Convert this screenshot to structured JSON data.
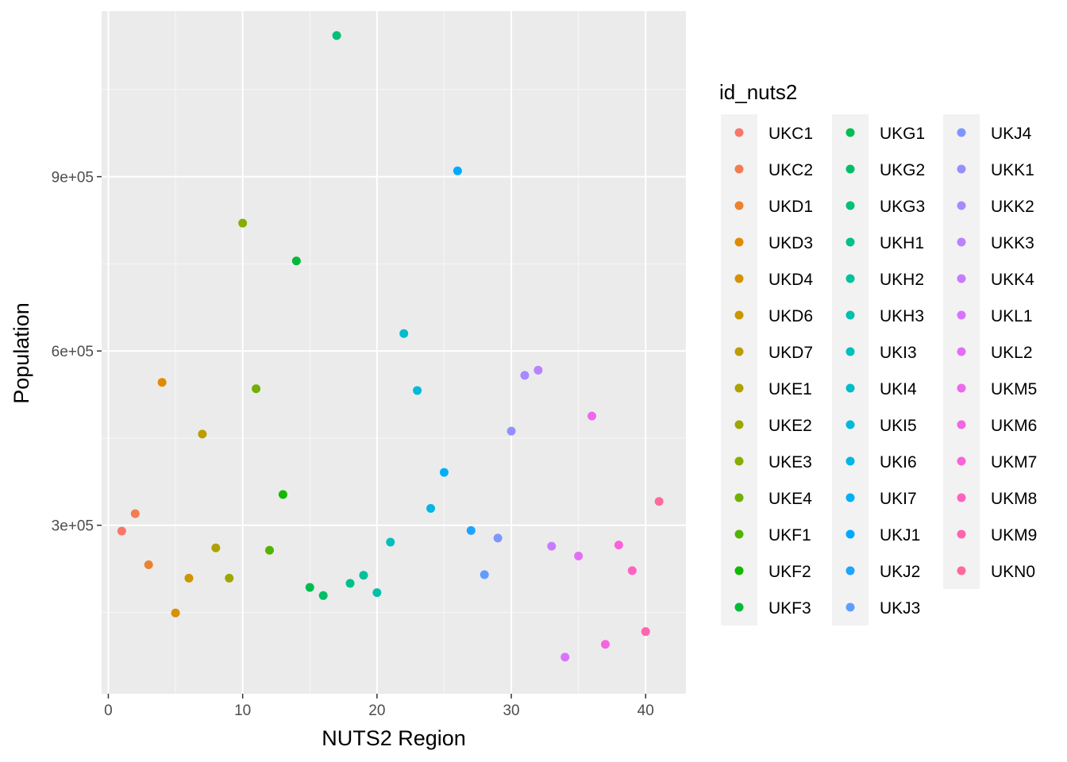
{
  "chart_data": {
    "type": "scatter",
    "xlabel": "NUTS2 Region",
    "ylabel": "Population",
    "xlim": [
      -0.5,
      43.0
    ],
    "ylim": [
      10000,
      1185000
    ],
    "x_ticks": [
      0,
      10,
      20,
      30,
      40
    ],
    "x_tick_labels": [
      "0",
      "10",
      "20",
      "30",
      "40"
    ],
    "y_ticks": [
      300000,
      600000,
      900000
    ],
    "y_tick_labels": [
      "3e+05",
      "6e+05",
      "9e+05"
    ],
    "y_minor_ticks": [
      150000,
      450000,
      750000,
      1050000
    ],
    "x_minor_ticks": [
      5,
      15,
      25,
      35
    ],
    "grid": true,
    "legend": {
      "title": "id_nuts2",
      "position": "right",
      "columns": 3
    },
    "points": [
      {
        "x": 1,
        "y": 290000,
        "label": "UKC1",
        "color": "#F8766D"
      },
      {
        "x": 2,
        "y": 320000,
        "label": "UKC2",
        "color": "#F27D52"
      },
      {
        "x": 3,
        "y": 232000,
        "label": "UKD1",
        "color": "#EA8331"
      },
      {
        "x": 4,
        "y": 546000,
        "label": "UKD3",
        "color": "#E18A00"
      },
      {
        "x": 5,
        "y": 149000,
        "label": "UKD4",
        "color": "#D69100"
      },
      {
        "x": 6,
        "y": 209000,
        "label": "UKD6",
        "color": "#CA9700"
      },
      {
        "x": 7,
        "y": 457000,
        "label": "UKD7",
        "color": "#BC9D00"
      },
      {
        "x": 8,
        "y": 261000,
        "label": "UKE1",
        "color": "#ADA200"
      },
      {
        "x": 9,
        "y": 209000,
        "label": "UKE2",
        "color": "#9CA700"
      },
      {
        "x": 10,
        "y": 820000,
        "label": "UKE3",
        "color": "#88AC00"
      },
      {
        "x": 11,
        "y": 535000,
        "label": "UKE4",
        "color": "#71B000"
      },
      {
        "x": 12,
        "y": 257000,
        "label": "UKF1",
        "color": "#52B400"
      },
      {
        "x": 13,
        "y": 353000,
        "label": "UKF2",
        "color": "#13B800"
      },
      {
        "x": 14,
        "y": 755000,
        "label": "UKF3",
        "color": "#00BA38"
      },
      {
        "x": 15,
        "y": 193000,
        "label": "UKG1",
        "color": "#00BC51"
      },
      {
        "x": 16,
        "y": 179000,
        "label": "UKG2",
        "color": "#00BE66"
      },
      {
        "x": 17,
        "y": 1143000,
        "label": "UKG3",
        "color": "#00BF78"
      },
      {
        "x": 18,
        "y": 200000,
        "label": "UKH1",
        "color": "#00C08B"
      },
      {
        "x": 19,
        "y": 214000,
        "label": "UKH2",
        "color": "#00C19C"
      },
      {
        "x": 20,
        "y": 184000,
        "label": "UKH3",
        "color": "#00C0AC"
      },
      {
        "x": 21,
        "y": 271000,
        "label": "UKI3",
        "color": "#00BFBC"
      },
      {
        "x": 22,
        "y": 630000,
        "label": "UKI4",
        "color": "#00BDCB"
      },
      {
        "x": 23,
        "y": 532000,
        "label": "UKI5",
        "color": "#00BAD8"
      },
      {
        "x": 24,
        "y": 329000,
        "label": "UKI6",
        "color": "#00B6E4"
      },
      {
        "x": 25,
        "y": 391000,
        "label": "UKI7",
        "color": "#00B0F6"
      },
      {
        "x": 26,
        "y": 910000,
        "label": "UKJ1",
        "color": "#00A9FF"
      },
      {
        "x": 27,
        "y": 291000,
        "label": "UKJ2",
        "color": "#1DA4FF"
      },
      {
        "x": 28,
        "y": 215000,
        "label": "UKJ3",
        "color": "#619CFF"
      },
      {
        "x": 29,
        "y": 278000,
        "label": "UKJ4",
        "color": "#7E96FF"
      },
      {
        "x": 30,
        "y": 462000,
        "label": "UKK1",
        "color": "#9590FF"
      },
      {
        "x": 31,
        "y": 558000,
        "label": "UKK2",
        "color": "#A989FF"
      },
      {
        "x": 32,
        "y": 567000,
        "label": "UKK3",
        "color": "#B983FF"
      },
      {
        "x": 33,
        "y": 264000,
        "label": "UKK4",
        "color": "#C77CFF"
      },
      {
        "x": 34,
        "y": 73000,
        "label": "UKL1",
        "color": "#D774FD"
      },
      {
        "x": 35,
        "y": 247000,
        "label": "UKL2",
        "color": "#E36EF6"
      },
      {
        "x": 36,
        "y": 488000,
        "label": "UKM5",
        "color": "#ED68ED"
      },
      {
        "x": 37,
        "y": 95000,
        "label": "UKM6",
        "color": "#F564E3"
      },
      {
        "x": 38,
        "y": 266000,
        "label": "UKM7",
        "color": "#FA62D9"
      },
      {
        "x": 39,
        "y": 222000,
        "label": "UKM8",
        "color": "#FF61C3"
      },
      {
        "x": 40,
        "y": 117000,
        "label": "UKM9",
        "color": "#FF64B0"
      },
      {
        "x": 41,
        "y": 341000,
        "label": "UKN0",
        "color": "#FF699C"
      }
    ],
    "legend_items": [
      {
        "label": "UKC1",
        "color": "#F8766D"
      },
      {
        "label": "UKC2",
        "color": "#F27D52"
      },
      {
        "label": "UKD1",
        "color": "#EA8331"
      },
      {
        "label": "UKD3",
        "color": "#E18A00"
      },
      {
        "label": "UKD4",
        "color": "#D69100"
      },
      {
        "label": "UKD6",
        "color": "#CA9700"
      },
      {
        "label": "UKD7",
        "color": "#BC9D00"
      },
      {
        "label": "UKE1",
        "color": "#ADA200"
      },
      {
        "label": "UKE2",
        "color": "#9CA700"
      },
      {
        "label": "UKE3",
        "color": "#88AC00"
      },
      {
        "label": "UKE4",
        "color": "#71B000"
      },
      {
        "label": "UKF1",
        "color": "#52B400"
      },
      {
        "label": "UKF2",
        "color": "#13B800"
      },
      {
        "label": "UKF3",
        "color": "#00BA38"
      },
      {
        "label": "UKG1",
        "color": "#00BC51"
      },
      {
        "label": "UKG2",
        "color": "#00BE66"
      },
      {
        "label": "UKG3",
        "color": "#00BF78"
      },
      {
        "label": "UKH1",
        "color": "#00C08B"
      },
      {
        "label": "UKH2",
        "color": "#00C19C"
      },
      {
        "label": "UKH3",
        "color": "#00C0AC"
      },
      {
        "label": "UKI3",
        "color": "#00BFBC"
      },
      {
        "label": "UKI4",
        "color": "#00BDCB"
      },
      {
        "label": "UKI5",
        "color": "#00BAD8"
      },
      {
        "label": "UKI6",
        "color": "#00B6E4"
      },
      {
        "label": "UKI7",
        "color": "#00B0F6"
      },
      {
        "label": "UKJ1",
        "color": "#00A9FF"
      },
      {
        "label": "UKJ2",
        "color": "#1DA4FF"
      },
      {
        "label": "UKJ3",
        "color": "#619CFF"
      },
      {
        "label": "UKJ4",
        "color": "#7E96FF"
      },
      {
        "label": "UKK1",
        "color": "#9590FF"
      },
      {
        "label": "UKK2",
        "color": "#A989FF"
      },
      {
        "label": "UKK3",
        "color": "#B983FF"
      },
      {
        "label": "UKK4",
        "color": "#C77CFF"
      },
      {
        "label": "UKL1",
        "color": "#D774FD"
      },
      {
        "label": "UKL2",
        "color": "#E36EF6"
      },
      {
        "label": "UKM5",
        "color": "#ED68ED"
      },
      {
        "label": "UKM6",
        "color": "#F564E3"
      },
      {
        "label": "UKM7",
        "color": "#FA62D9"
      },
      {
        "label": "UKM8",
        "color": "#FF61C3"
      },
      {
        "label": "UKM9",
        "color": "#FF64B0"
      },
      {
        "label": "UKN0",
        "color": "#FF699C"
      }
    ],
    "colors": {
      "panel_background": "#EBEBEB",
      "grid_major": "#FFFFFF",
      "grid_minor": "#F7F7F7",
      "tick_text": "#4D4D4D",
      "legend_key_background": "#F2F2F2"
    }
  }
}
